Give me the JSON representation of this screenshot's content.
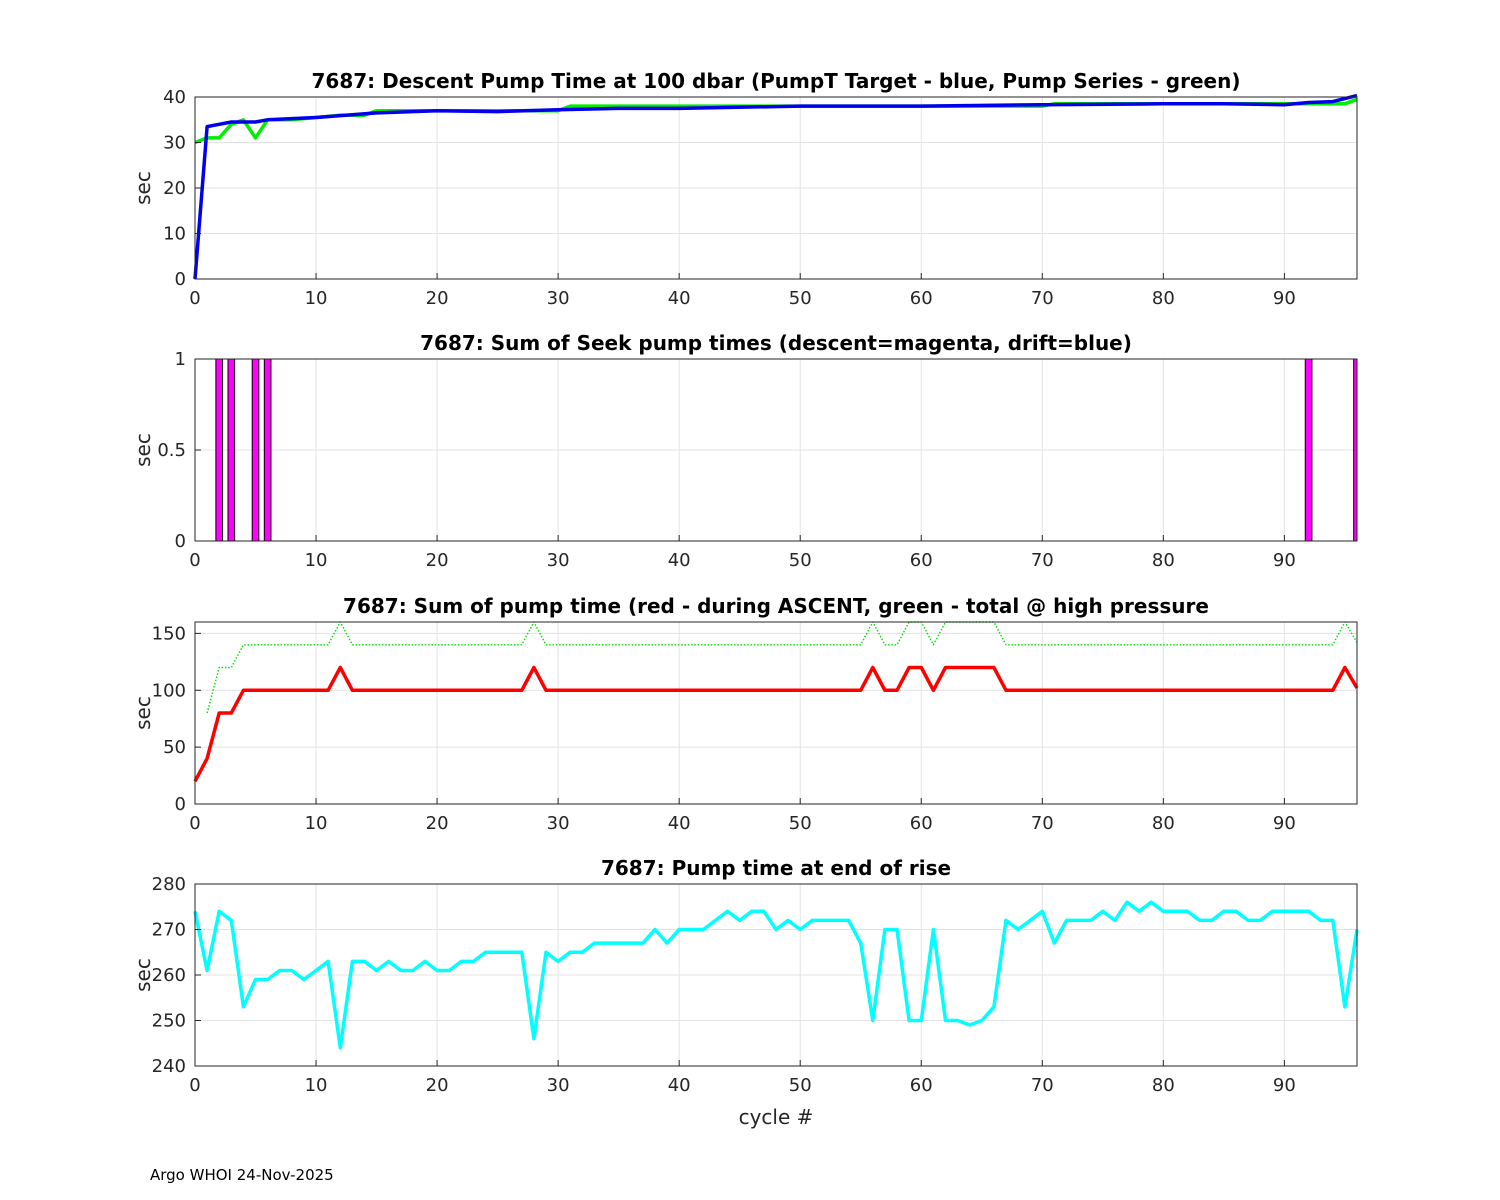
{
  "footer": "Argo WHOI 24-Nov-2025",
  "chart_data": [
    {
      "type": "line",
      "title": "7687: Descent Pump Time at 100 dbar (PumpT Target - blue, Pump Series - green)",
      "xlabel": "",
      "ylabel": "sec",
      "xlim": [
        0,
        96
      ],
      "ylim": [
        0,
        40
      ],
      "xticks": [
        0,
        10,
        20,
        30,
        40,
        50,
        60,
        70,
        80,
        90
      ],
      "yticks": [
        0,
        10,
        20,
        30,
        40
      ],
      "grid": true,
      "series": [
        {
          "color": "#00ee00",
          "style": "solid",
          "points": [
            [
              0,
              30
            ],
            [
              1,
              31
            ],
            [
              2,
              31
            ],
            [
              3,
              34
            ],
            [
              4,
              35
            ],
            [
              5,
              31
            ],
            [
              6,
              35
            ],
            [
              7,
              35
            ],
            [
              8,
              35
            ],
            [
              10,
              35.5
            ],
            [
              12,
              36
            ],
            [
              14,
              36
            ],
            [
              15,
              37
            ],
            [
              20,
              37
            ],
            [
              25,
              37
            ],
            [
              30,
              37
            ],
            [
              31,
              38
            ],
            [
              40,
              38
            ],
            [
              50,
              38
            ],
            [
              60,
              38
            ],
            [
              70,
              38
            ],
            [
              71,
              38.5
            ],
            [
              80,
              38.5
            ],
            [
              90,
              38.5
            ],
            [
              95,
              38.5
            ],
            [
              96,
              39.5
            ]
          ]
        },
        {
          "color": "#0000ee",
          "style": "solid",
          "points": [
            [
              0,
              0
            ],
            [
              1,
              33.5
            ],
            [
              2,
              34
            ],
            [
              3,
              34.5
            ],
            [
              5,
              34.5
            ],
            [
              6,
              35
            ],
            [
              10,
              35.5
            ],
            [
              15,
              36.5
            ],
            [
              20,
              37
            ],
            [
              25,
              36.8
            ],
            [
              30,
              37.2
            ],
            [
              35,
              37.5
            ],
            [
              40,
              37.5
            ],
            [
              50,
              38
            ],
            [
              60,
              38
            ],
            [
              70,
              38.3
            ],
            [
              80,
              38.5
            ],
            [
              85,
              38.5
            ],
            [
              90,
              38.3
            ],
            [
              92,
              38.8
            ],
            [
              94,
              39
            ],
            [
              96,
              40.3
            ]
          ]
        }
      ]
    },
    {
      "type": "bar",
      "title": "7687: Sum of Seek pump times (descent=magenta, drift=blue)",
      "xlabel": "",
      "ylabel": "sec",
      "xlim": [
        0,
        96
      ],
      "ylim": [
        0,
        1
      ],
      "xticks": [
        0,
        10,
        20,
        30,
        40,
        50,
        60,
        70,
        80,
        90
      ],
      "yticks": [
        0,
        0.5,
        1
      ],
      "grid": true,
      "bar_color": "#ff00ff",
      "bars": [
        [
          2,
          1
        ],
        [
          3,
          1
        ],
        [
          5,
          1
        ],
        [
          6,
          1
        ],
        [
          92,
          1
        ],
        [
          96,
          1
        ]
      ]
    },
    {
      "type": "line",
      "title": "7687: Sum of pump time (red - during ASCENT, green - total @ high pressure",
      "xlabel": "",
      "ylabel": "sec",
      "xlim": [
        0,
        96
      ],
      "ylim": [
        0,
        160
      ],
      "xticks": [
        0,
        10,
        20,
        30,
        40,
        50,
        60,
        70,
        80,
        90
      ],
      "yticks": [
        0,
        50,
        100,
        150
      ],
      "grid": true,
      "series": [
        {
          "color": "#ff0000",
          "style": "solid",
          "points": [
            [
              0,
              20
            ],
            [
              1,
              40
            ],
            [
              2,
              80
            ],
            [
              3,
              80
            ],
            [
              4,
              100
            ],
            [
              11,
              100
            ],
            [
              12,
              120
            ],
            [
              13,
              100
            ],
            [
              27,
              100
            ],
            [
              28,
              120
            ],
            [
              29,
              100
            ],
            [
              55,
              100
            ],
            [
              56,
              120
            ],
            [
              57,
              100
            ],
            [
              58,
              100
            ],
            [
              59,
              120
            ],
            [
              60,
              120
            ],
            [
              61,
              100
            ],
            [
              62,
              120
            ],
            [
              66,
              120
            ],
            [
              67,
              100
            ],
            [
              94,
              100
            ],
            [
              95,
              120
            ],
            [
              96,
              102
            ]
          ]
        },
        {
          "color": "#00dd00",
          "style": "dotted",
          "points": [
            [
              1,
              80
            ],
            [
              2,
              120
            ],
            [
              3,
              120
            ],
            [
              4,
              140
            ],
            [
              11,
              140
            ],
            [
              12,
              160
            ],
            [
              13,
              140
            ],
            [
              27,
              140
            ],
            [
              28,
              160
            ],
            [
              29,
              140
            ],
            [
              55,
              140
            ],
            [
              56,
              160
            ],
            [
              57,
              140
            ],
            [
              58,
              140
            ],
            [
              59,
              160
            ],
            [
              60,
              160
            ],
            [
              61,
              140
            ],
            [
              62,
              160
            ],
            [
              66,
              160
            ],
            [
              67,
              140
            ],
            [
              94,
              140
            ],
            [
              95,
              160
            ],
            [
              96,
              142
            ]
          ]
        }
      ]
    },
    {
      "type": "line",
      "title": "7687: Pump time at end of rise",
      "xlabel": "cycle #",
      "ylabel": "sec",
      "xlim": [
        0,
        96
      ],
      "ylim": [
        240,
        280
      ],
      "xticks": [
        0,
        10,
        20,
        30,
        40,
        50,
        60,
        70,
        80,
        90
      ],
      "yticks": [
        240,
        250,
        260,
        270,
        280
      ],
      "grid": true,
      "series": [
        {
          "color": "#00ffff",
          "style": "solid",
          "points": [
            [
              0,
              274
            ],
            [
              1,
              261
            ],
            [
              2,
              274
            ],
            [
              3,
              272
            ],
            [
              4,
              253
            ],
            [
              5,
              259
            ],
            [
              6,
              259
            ],
            [
              7,
              261
            ],
            [
              8,
              261
            ],
            [
              9,
              259
            ],
            [
              10,
              261
            ],
            [
              11,
              263
            ],
            [
              12,
              244
            ],
            [
              13,
              263
            ],
            [
              14,
              263
            ],
            [
              15,
              261
            ],
            [
              16,
              263
            ],
            [
              17,
              261
            ],
            [
              18,
              261
            ],
            [
              19,
              263
            ],
            [
              20,
              261
            ],
            [
              21,
              261
            ],
            [
              22,
              263
            ],
            [
              23,
              263
            ],
            [
              24,
              265
            ],
            [
              25,
              265
            ],
            [
              26,
              265
            ],
            [
              27,
              265
            ],
            [
              28,
              246
            ],
            [
              29,
              265
            ],
            [
              30,
              263
            ],
            [
              31,
              265
            ],
            [
              32,
              265
            ],
            [
              33,
              267
            ],
            [
              34,
              267
            ],
            [
              35,
              267
            ],
            [
              36,
              267
            ],
            [
              37,
              267
            ],
            [
              38,
              270
            ],
            [
              39,
              267
            ],
            [
              40,
              270
            ],
            [
              41,
              270
            ],
            [
              42,
              270
            ],
            [
              43,
              272
            ],
            [
              44,
              274
            ],
            [
              45,
              272
            ],
            [
              46,
              274
            ],
            [
              47,
              274
            ],
            [
              48,
              270
            ],
            [
              49,
              272
            ],
            [
              50,
              270
            ],
            [
              51,
              272
            ],
            [
              52,
              272
            ],
            [
              53,
              272
            ],
            [
              54,
              272
            ],
            [
              55,
              267
            ],
            [
              56,
              250
            ],
            [
              57,
              270
            ],
            [
              58,
              270
            ],
            [
              59,
              250
            ],
            [
              60,
              250
            ],
            [
              61,
              270
            ],
            [
              62,
              250
            ],
            [
              63,
              250
            ],
            [
              64,
              249
            ],
            [
              65,
              250
            ],
            [
              66,
              253
            ],
            [
              67,
              272
            ],
            [
              68,
              270
            ],
            [
              69,
              272
            ],
            [
              70,
              274
            ],
            [
              71,
              267
            ],
            [
              72,
              272
            ],
            [
              73,
              272
            ],
            [
              74,
              272
            ],
            [
              75,
              274
            ],
            [
              76,
              272
            ],
            [
              77,
              276
            ],
            [
              78,
              274
            ],
            [
              79,
              276
            ],
            [
              80,
              274
            ],
            [
              81,
              274
            ],
            [
              82,
              274
            ],
            [
              83,
              272
            ],
            [
              84,
              272
            ],
            [
              85,
              274
            ],
            [
              86,
              274
            ],
            [
              87,
              272
            ],
            [
              88,
              272
            ],
            [
              89,
              274
            ],
            [
              90,
              274
            ],
            [
              91,
              274
            ],
            [
              92,
              274
            ],
            [
              93,
              272
            ],
            [
              94,
              272
            ],
            [
              95,
              253
            ],
            [
              96,
              270
            ]
          ]
        }
      ]
    }
  ]
}
